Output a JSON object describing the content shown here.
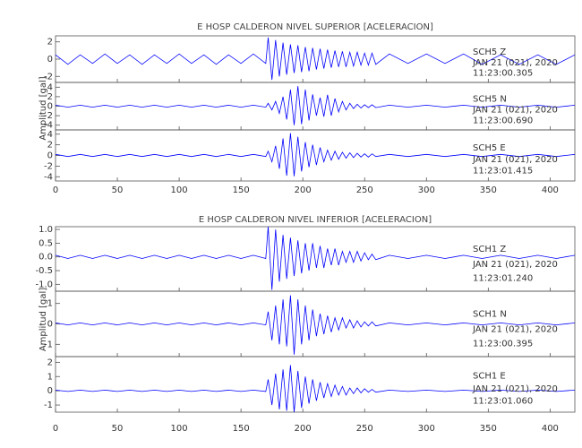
{
  "chart_data": [
    {
      "type": "line",
      "title": "E HOSP CALDERON NIVEL SUPERIOR [ACELERACION]",
      "ylabel": "Amplitud [gal]",
      "xlim": [
        0,
        420
      ],
      "xticks": [
        0,
        50,
        100,
        150,
        200,
        250,
        300,
        350,
        400
      ],
      "x": [
        0,
        10,
        20,
        30,
        40,
        50,
        60,
        70,
        80,
        90,
        100,
        110,
        120,
        130,
        140,
        150,
        160,
        170,
        172,
        175,
        178,
        181,
        184,
        187,
        190,
        193,
        196,
        199,
        202,
        205,
        208,
        211,
        214,
        217,
        220,
        223,
        226,
        229,
        232,
        235,
        238,
        241,
        244,
        247,
        250,
        253,
        256,
        259,
        270,
        285,
        300,
        315,
        330,
        345,
        360,
        375,
        390,
        405,
        420
      ],
      "series": [
        {
          "name": "SCH5   Z",
          "date": "JAN 21 (021), 2020",
          "time": "11:23:00.305",
          "color": "#0000ff",
          "ylim": [
            -2.7,
            2.7
          ],
          "yticks": [
            -2,
            0,
            2
          ],
          "values": [
            0.5,
            -0.6,
            0.5,
            -0.5,
            0.6,
            -0.5,
            0.5,
            -0.6,
            0.5,
            -0.5,
            0.6,
            -0.5,
            0.5,
            -0.6,
            0.5,
            -0.5,
            0.6,
            -0.5,
            2.5,
            -2.4,
            2.2,
            -2.0,
            1.9,
            -1.8,
            1.7,
            -1.6,
            1.6,
            -1.5,
            1.4,
            -1.4,
            1.3,
            -1.2,
            1.2,
            -1.1,
            1.1,
            -1.0,
            1.0,
            -0.9,
            0.9,
            -0.9,
            0.8,
            -0.8,
            0.8,
            -0.7,
            0.7,
            -0.7,
            0.7,
            -0.6,
            0.6,
            -0.5,
            0.6,
            -0.5,
            0.6,
            -0.6,
            0.5,
            -0.6,
            0.5,
            -0.6,
            0.5
          ]
        },
        {
          "name": "SCH5   N",
          "date": "JAN 21 (021), 2020",
          "time": "11:23:00.690",
          "color": "#0000ff",
          "ylim": [
            -5,
            5
          ],
          "yticks": [
            -4,
            -2,
            0,
            2,
            4
          ],
          "values": [
            0.2,
            -0.2,
            0.2,
            -0.2,
            0.2,
            -0.2,
            0.2,
            -0.2,
            0.2,
            -0.2,
            0.2,
            -0.2,
            0.2,
            -0.2,
            0.2,
            -0.2,
            0.2,
            -0.2,
            0.6,
            -0.8,
            1.0,
            -1.5,
            2.0,
            -2.8,
            3.5,
            -4.0,
            4.2,
            -3.8,
            3.5,
            -3.0,
            2.5,
            -2.0,
            1.8,
            -2.2,
            2.4,
            -2.0,
            1.6,
            -1.2,
            1.0,
            -0.8,
            0.6,
            -0.5,
            0.4,
            -0.4,
            0.3,
            -0.3,
            0.3,
            -0.3,
            0.2,
            -0.2,
            0.2,
            -0.2,
            0.2,
            -0.2,
            0.2,
            -0.2,
            0.2,
            -0.2,
            0.2
          ]
        },
        {
          "name": "SCH5   E",
          "date": "JAN 21 (021), 2020",
          "time": "11:23:01.415",
          "color": "#0000ff",
          "ylim": [
            -4.8,
            4.8
          ],
          "yticks": [
            -4,
            -2,
            0,
            2,
            4
          ],
          "values": [
            0.2,
            -0.2,
            0.2,
            -0.2,
            0.2,
            -0.2,
            0.2,
            -0.2,
            0.2,
            -0.2,
            0.2,
            -0.2,
            0.2,
            -0.2,
            0.2,
            -0.2,
            0.2,
            -0.2,
            0.8,
            -1.2,
            1.8,
            -2.5,
            3.2,
            -3.8,
            4.2,
            -3.9,
            3.5,
            -3.0,
            2.5,
            -2.2,
            2.0,
            -1.8,
            1.5,
            -1.2,
            1.0,
            -0.9,
            0.8,
            -0.7,
            0.6,
            -0.5,
            0.5,
            -0.4,
            0.4,
            -0.3,
            0.3,
            -0.3,
            0.3,
            -0.2,
            0.2,
            -0.2,
            0.2,
            -0.2,
            0.2,
            -0.2,
            0.2,
            -0.2,
            0.2,
            -0.2,
            0.2
          ]
        }
      ]
    },
    {
      "type": "line",
      "title": "E HOSP CALDERON NIVEL INFERIOR [ACELERACION]",
      "ylabel": "Amplitud [gal]",
      "xlim": [
        0,
        420
      ],
      "xticks": [
        0,
        50,
        100,
        150,
        200,
        250,
        300,
        350,
        400
      ],
      "x": [
        0,
        10,
        20,
        30,
        40,
        50,
        60,
        70,
        80,
        90,
        100,
        110,
        120,
        130,
        140,
        150,
        160,
        170,
        172,
        175,
        178,
        181,
        184,
        187,
        190,
        193,
        196,
        199,
        202,
        205,
        208,
        211,
        214,
        217,
        220,
        223,
        226,
        229,
        232,
        235,
        238,
        241,
        244,
        247,
        250,
        253,
        256,
        259,
        270,
        285,
        300,
        315,
        330,
        345,
        360,
        375,
        390,
        405,
        420
      ],
      "series": [
        {
          "name": "SCH1   Z",
          "date": "JAN 21 (021), 2020",
          "time": "11:23:01.240",
          "color": "#0000ff",
          "ylim": [
            -1.25,
            1.1
          ],
          "yticks": [
            {
              "value": -1.0,
              "label": "-1.0"
            },
            {
              "value": -0.5,
              "label": "-0.5"
            },
            {
              "value": 0,
              "label": "0.0"
            },
            {
              "value": 0.5,
              "label": "0.5"
            },
            {
              "value": 1.0,
              "label": "1.0"
            }
          ],
          "values": [
            0.06,
            -0.06,
            0.06,
            -0.06,
            0.06,
            -0.06,
            0.06,
            -0.06,
            0.06,
            -0.06,
            0.06,
            -0.06,
            0.06,
            -0.06,
            0.06,
            -0.06,
            0.06,
            -0.06,
            1.1,
            -1.2,
            1.0,
            -0.9,
            0.8,
            -0.8,
            0.7,
            -0.7,
            0.6,
            -0.6,
            0.5,
            -0.5,
            0.5,
            -0.4,
            0.4,
            -0.4,
            0.3,
            -0.3,
            0.3,
            -0.3,
            0.2,
            -0.2,
            0.2,
            -0.2,
            0.2,
            -0.15,
            0.15,
            -0.1,
            0.1,
            -0.1,
            0.06,
            -0.06,
            0.06,
            -0.06,
            0.06,
            -0.06,
            0.06,
            -0.06,
            0.06,
            -0.06,
            0.06
          ]
        },
        {
          "name": "SCH1   N",
          "date": "JAN 21 (021), 2020",
          "time": "11:23:00.395",
          "color": "#0000ff",
          "ylim": [
            -1.6,
            1.6
          ],
          "yticks": [
            -1,
            0,
            1
          ],
          "values": [
            0.05,
            -0.05,
            0.05,
            -0.05,
            0.05,
            -0.05,
            0.05,
            -0.05,
            0.05,
            -0.05,
            0.05,
            -0.05,
            0.05,
            -0.05,
            0.05,
            -0.05,
            0.05,
            -0.05,
            0.6,
            -0.8,
            0.9,
            -1.0,
            1.2,
            -1.1,
            1.4,
            -1.5,
            1.2,
            -1.0,
            0.9,
            -0.8,
            0.7,
            -0.6,
            0.5,
            -0.5,
            0.4,
            -0.4,
            0.3,
            -0.3,
            0.3,
            -0.2,
            0.2,
            -0.2,
            0.15,
            -0.15,
            0.1,
            -0.1,
            0.1,
            -0.1,
            0.05,
            -0.05,
            0.05,
            -0.05,
            0.05,
            -0.05,
            0.05,
            -0.05,
            0.05,
            -0.05,
            0.05
          ]
        },
        {
          "name": "SCH1   E",
          "date": "JAN 21 (021), 2020",
          "time": "11:23:01.060",
          "color": "#0000ff",
          "ylim": [
            -1.5,
            2.4
          ],
          "yticks": [
            -1,
            0,
            1,
            2
          ],
          "values": [
            0.05,
            -0.05,
            0.05,
            -0.05,
            0.05,
            -0.05,
            0.05,
            -0.05,
            0.05,
            -0.05,
            0.05,
            -0.05,
            0.05,
            -0.05,
            0.05,
            -0.05,
            0.05,
            -0.05,
            0.8,
            -1.0,
            1.2,
            -1.3,
            1.5,
            -1.4,
            1.8,
            -1.5,
            1.4,
            -1.2,
            1.0,
            -0.9,
            0.8,
            -0.7,
            0.6,
            -0.5,
            0.5,
            -0.4,
            0.4,
            -0.3,
            0.3,
            -0.3,
            0.2,
            -0.2,
            0.2,
            -0.15,
            0.15,
            -0.1,
            0.1,
            -0.1,
            0.05,
            -0.05,
            0.05,
            -0.05,
            0.05,
            -0.05,
            0.05,
            -0.05,
            0.05,
            -0.05,
            0.05
          ]
        }
      ]
    }
  ]
}
